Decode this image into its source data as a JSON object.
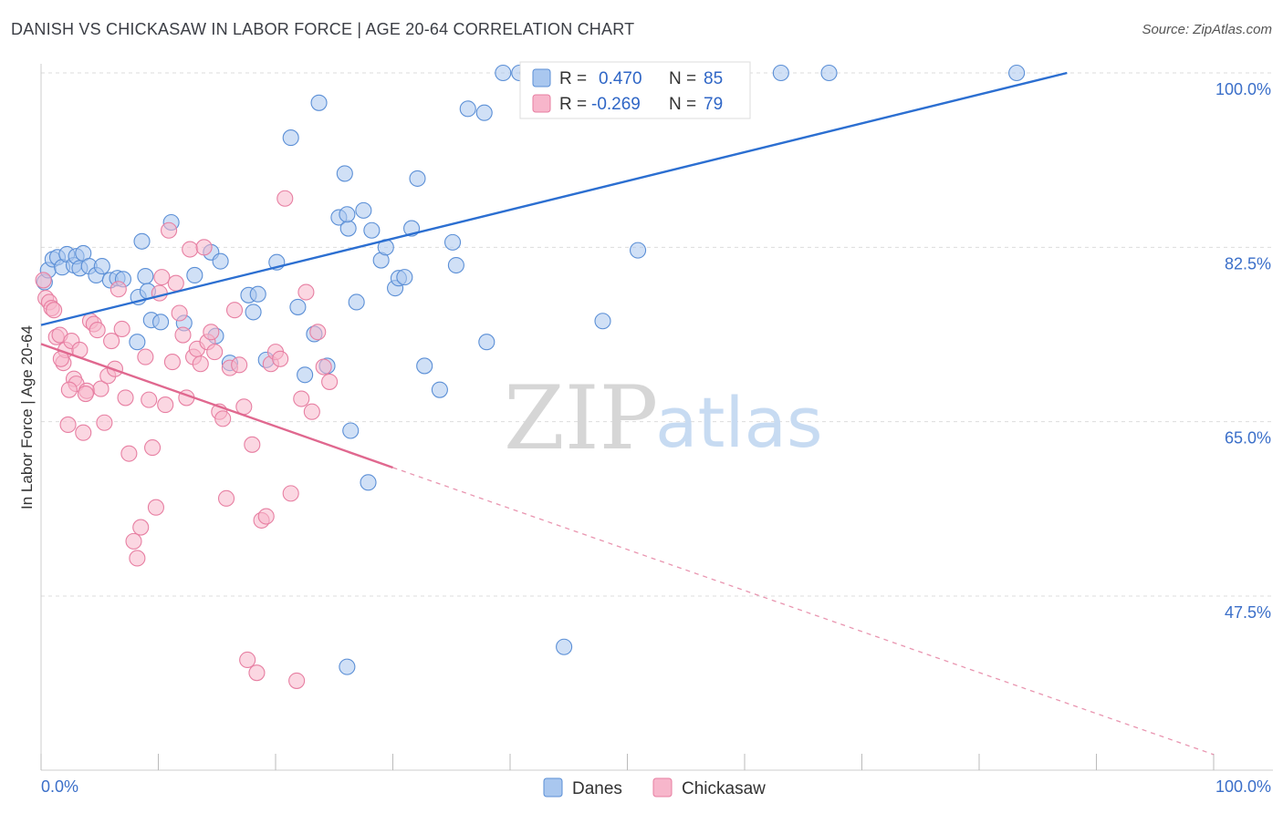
{
  "title": "DANISH VS CHICKASAW IN LABOR FORCE | AGE 20-64 CORRELATION CHART",
  "source": "Source: ZipAtlas.com",
  "watermark": {
    "zip": "ZIP",
    "atlas": "atlas"
  },
  "colors": {
    "danes_fill": "#a9c7ef",
    "danes_stroke": "#5b8fd6",
    "danes_line": "#2c6fd1",
    "chick_fill": "#f7b6cb",
    "chick_stroke": "#e77fa2",
    "chick_line": "#e0688f",
    "grid": "#dddddd",
    "tick_text": "#3b6fc9"
  },
  "legend": {
    "r_label": "R =",
    "n_label": "N =",
    "danes": {
      "r": "0.470",
      "n": "85"
    },
    "chickasaw": {
      "r": "-0.269",
      "n": "79"
    }
  },
  "chart_data": {
    "type": "scatter",
    "xlabel": "",
    "ylabel": "In Labor Force | Age 20-64",
    "xlim": [
      0,
      100
    ],
    "ylim": [
      30,
      100
    ],
    "x_tick_labels": [
      "0.0%",
      "100.0%"
    ],
    "y_ticks": [
      47.5,
      65.0,
      82.5,
      100.0
    ],
    "y_tick_labels": [
      "47.5%",
      "65.0%",
      "82.5%",
      "100.0%"
    ],
    "grid": true,
    "legend_position": "top-center",
    "series": [
      {
        "name": "Danes",
        "trend": {
          "x": [
            0,
            87.5
          ],
          "y": [
            74.7,
            100.0
          ],
          "dashed_to": null
        },
        "points": [
          [
            0.3,
            79.0
          ],
          [
            0.6,
            80.2
          ],
          [
            1.0,
            81.3
          ],
          [
            1.4,
            81.5
          ],
          [
            1.8,
            80.5
          ],
          [
            2.2,
            81.8
          ],
          [
            2.8,
            80.7
          ],
          [
            3.0,
            81.6
          ],
          [
            3.3,
            80.4
          ],
          [
            3.6,
            81.9
          ],
          [
            4.1,
            80.6
          ],
          [
            4.7,
            79.7
          ],
          [
            5.2,
            80.6
          ],
          [
            5.9,
            79.2
          ],
          [
            6.5,
            79.4
          ],
          [
            7.0,
            79.3
          ],
          [
            8.3,
            77.5
          ],
          [
            8.6,
            83.1
          ],
          [
            8.9,
            79.6
          ],
          [
            9.1,
            78.1
          ],
          [
            8.2,
            73.0
          ],
          [
            9.4,
            75.2
          ],
          [
            10.2,
            75.0
          ],
          [
            11.1,
            85.0
          ],
          [
            12.2,
            74.9
          ],
          [
            13.1,
            79.7
          ],
          [
            14.9,
            73.6
          ],
          [
            14.5,
            82.0
          ],
          [
            15.3,
            81.1
          ],
          [
            16.1,
            70.9
          ],
          [
            17.7,
            77.7
          ],
          [
            18.1,
            76.0
          ],
          [
            18.5,
            77.8
          ],
          [
            19.2,
            71.2
          ],
          [
            20.1,
            81.0
          ],
          [
            21.3,
            93.5
          ],
          [
            21.9,
            76.5
          ],
          [
            22.5,
            69.7
          ],
          [
            23.3,
            73.8
          ],
          [
            23.7,
            97.0
          ],
          [
            24.4,
            70.6
          ],
          [
            25.4,
            85.5
          ],
          [
            25.9,
            89.9
          ],
          [
            26.2,
            84.4
          ],
          [
            26.1,
            85.8
          ],
          [
            26.9,
            77.0
          ],
          [
            27.5,
            86.2
          ],
          [
            28.2,
            84.2
          ],
          [
            29.0,
            81.2
          ],
          [
            29.4,
            82.5
          ],
          [
            30.2,
            78.4
          ],
          [
            30.5,
            79.4
          ],
          [
            31.0,
            79.5
          ],
          [
            31.6,
            84.4
          ],
          [
            32.1,
            89.4
          ],
          [
            32.7,
            70.6
          ],
          [
            34.0,
            68.2
          ],
          [
            35.1,
            83.0
          ],
          [
            35.4,
            80.7
          ],
          [
            36.4,
            96.4
          ],
          [
            37.8,
            96.0
          ],
          [
            39.4,
            100.0
          ],
          [
            40.8,
            100.0
          ],
          [
            41.5,
            100.0
          ],
          [
            42.8,
            100.0
          ],
          [
            44.2,
            100.0
          ],
          [
            45.5,
            100.0
          ],
          [
            46.1,
            100.0
          ],
          [
            47.3,
            100.0
          ],
          [
            48.2,
            100.0
          ],
          [
            49.0,
            100.0
          ],
          [
            50.0,
            100.0
          ],
          [
            52.3,
            100.0
          ],
          [
            54.8,
            100.0
          ],
          [
            56.6,
            100.0
          ],
          [
            59.1,
            100.0
          ],
          [
            63.1,
            100.0
          ],
          [
            67.2,
            100.0
          ],
          [
            83.2,
            100.0
          ],
          [
            38.0,
            73.0
          ],
          [
            47.9,
            75.1
          ],
          [
            50.9,
            82.2
          ],
          [
            44.6,
            42.4
          ],
          [
            26.4,
            64.1
          ],
          [
            26.1,
            40.4
          ],
          [
            27.9,
            58.9
          ]
        ]
      },
      {
        "name": "Chickasaw",
        "trend": {
          "x": [
            0,
            30
          ],
          "y": [
            72.8,
            60.4
          ],
          "dashed_to": [
            100,
            31.6
          ]
        },
        "points": [
          [
            0.2,
            79.2
          ],
          [
            0.4,
            77.4
          ],
          [
            0.7,
            77.0
          ],
          [
            0.9,
            76.4
          ],
          [
            1.1,
            76.2
          ],
          [
            1.3,
            73.5
          ],
          [
            1.6,
            73.7
          ],
          [
            1.9,
            70.9
          ],
          [
            2.1,
            72.2
          ],
          [
            2.3,
            64.7
          ],
          [
            2.6,
            73.1
          ],
          [
            2.8,
            69.3
          ],
          [
            3.0,
            68.8
          ],
          [
            3.3,
            72.2
          ],
          [
            3.6,
            63.9
          ],
          [
            3.9,
            68.1
          ],
          [
            4.2,
            75.1
          ],
          [
            4.5,
            74.8
          ],
          [
            4.8,
            74.2
          ],
          [
            5.1,
            68.3
          ],
          [
            5.4,
            64.9
          ],
          [
            5.7,
            69.6
          ],
          [
            6.0,
            73.1
          ],
          [
            6.3,
            70.3
          ],
          [
            6.6,
            78.3
          ],
          [
            6.9,
            74.3
          ],
          [
            7.2,
            67.4
          ],
          [
            7.5,
            61.8
          ],
          [
            7.9,
            53.0
          ],
          [
            8.2,
            51.3
          ],
          [
            8.5,
            54.4
          ],
          [
            8.9,
            71.5
          ],
          [
            9.2,
            67.2
          ],
          [
            9.5,
            62.4
          ],
          [
            9.8,
            56.4
          ],
          [
            10.1,
            77.9
          ],
          [
            10.3,
            79.5
          ],
          [
            10.6,
            66.7
          ],
          [
            10.9,
            84.2
          ],
          [
            11.2,
            71.0
          ],
          [
            11.5,
            78.9
          ],
          [
            11.8,
            75.9
          ],
          [
            12.1,
            73.7
          ],
          [
            12.4,
            67.4
          ],
          [
            12.7,
            82.3
          ],
          [
            13.0,
            71.5
          ],
          [
            13.3,
            72.3
          ],
          [
            13.6,
            70.8
          ],
          [
            13.9,
            82.5
          ],
          [
            14.2,
            73.0
          ],
          [
            14.5,
            74.0
          ],
          [
            14.8,
            72.0
          ],
          [
            15.2,
            66.0
          ],
          [
            15.5,
            65.3
          ],
          [
            15.8,
            57.3
          ],
          [
            16.1,
            70.4
          ],
          [
            16.5,
            76.2
          ],
          [
            16.9,
            70.7
          ],
          [
            17.3,
            66.5
          ],
          [
            17.6,
            41.1
          ],
          [
            18.0,
            62.7
          ],
          [
            18.4,
            39.8
          ],
          [
            18.8,
            55.1
          ],
          [
            19.2,
            55.5
          ],
          [
            19.6,
            70.8
          ],
          [
            20.0,
            72.0
          ],
          [
            20.4,
            71.3
          ],
          [
            20.8,
            87.4
          ],
          [
            21.3,
            57.8
          ],
          [
            21.8,
            39.0
          ],
          [
            22.2,
            67.3
          ],
          [
            22.6,
            78.0
          ],
          [
            23.1,
            66.0
          ],
          [
            23.6,
            74.0
          ],
          [
            24.1,
            70.5
          ],
          [
            24.6,
            69.0
          ],
          [
            3.8,
            67.8
          ],
          [
            2.4,
            68.2
          ],
          [
            1.7,
            71.3
          ]
        ]
      }
    ]
  },
  "bottom_legend": {
    "danes": "Danes",
    "chickasaw": "Chickasaw"
  }
}
